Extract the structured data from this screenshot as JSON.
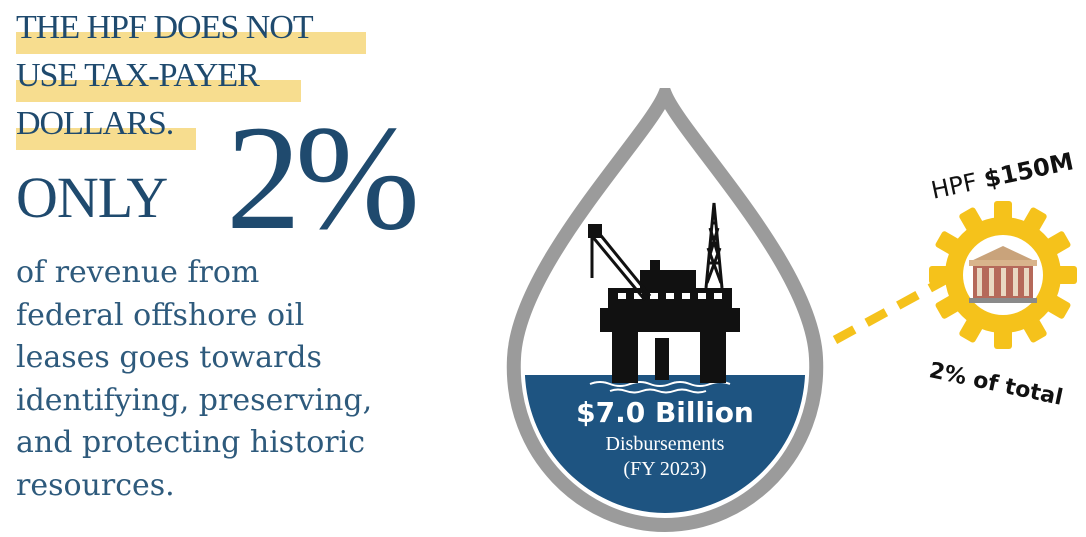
{
  "headline": {
    "line1": "THE HPF DOES NOT",
    "line2": "USE TAX-PAYER",
    "line3": "DOLLARS."
  },
  "callout": {
    "only": "ONLY",
    "percent": "2%"
  },
  "body": {
    "line1": "of revenue from",
    "line2": "federal offshore oil",
    "line3": "leases goes towards",
    "line4": "identifying, preserving,",
    "line5": "and protecting historic",
    "line6": "resources."
  },
  "drop": {
    "amount": "$7.0 Billion",
    "label": "Disbursements",
    "period": "(FY 2023)"
  },
  "hpf": {
    "prefix": "HPF",
    "value": "$150M",
    "share": "2% of total"
  },
  "colors": {
    "navy": "#1f4a6e",
    "water": "#1e5481",
    "highlight": "#f7dd8f",
    "gold": "#f5c21b",
    "drop_outline": "#9b9b9b"
  },
  "icons": {
    "rig": "offshore-oil-rig-icon",
    "building": "historic-building-icon",
    "gear": "gear-icon"
  }
}
